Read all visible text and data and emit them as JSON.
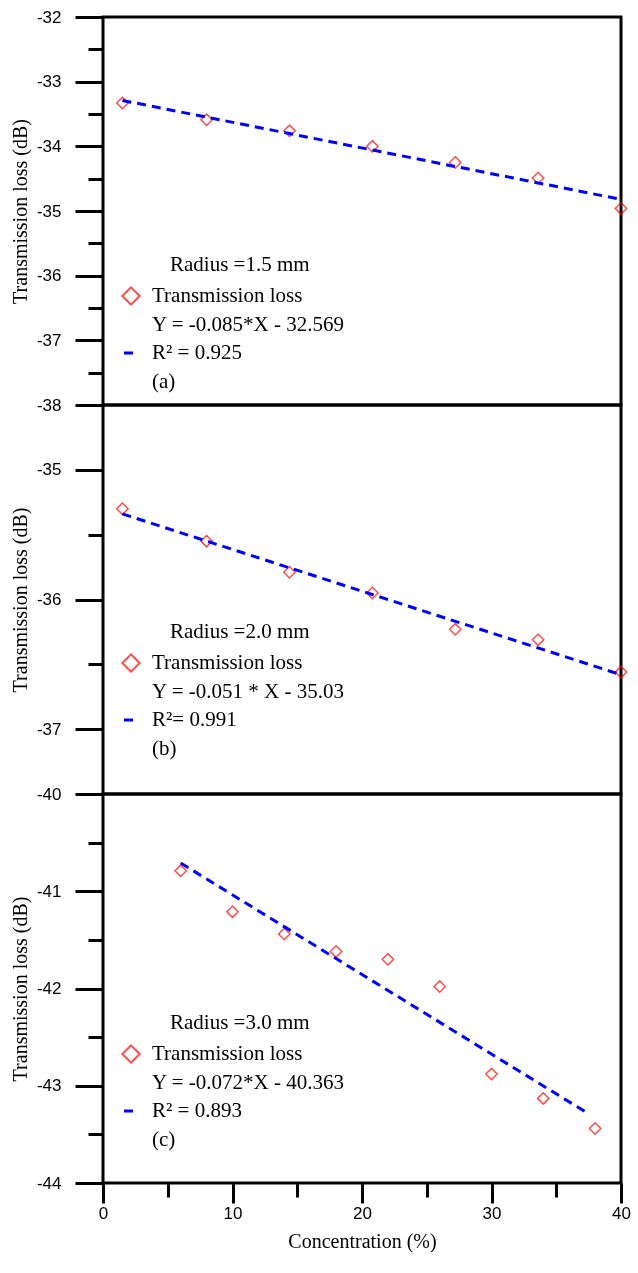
{
  "chart_data": [
    {
      "type": "scatter",
      "ylabel": "Transmission loss (dB)",
      "legend_title": "Radius =1.5 mm",
      "legend": "bottom left",
      "line_style": "dashed",
      "tick_labels": "y",
      "annotations": [
        "Y = -0.085*X - 32.569",
        "(a)"
      ],
      "xlim": [
        0,
        40
      ],
      "ylim": [
        -38,
        -32
      ],
      "yticks": [
        -32,
        {
          "value": -32.5,
          "label": null
        },
        -33,
        {
          "value": -33.5,
          "label": null
        },
        -34,
        {
          "value": -34.5,
          "label": null
        },
        -35,
        {
          "value": -35.5,
          "label": null
        },
        -36,
        {
          "value": -36.5,
          "label": null
        },
        -37,
        {
          "value": -37.5,
          "label": null
        },
        -38
      ],
      "series": [
        {
          "name": "Transmission loss",
          "color": "#ff0000",
          "marker": "diamond",
          "x": [
            1.5,
            8,
            14.4,
            20.8,
            27.2,
            33.6,
            40
          ],
          "values": [
            -33.33,
            -33.59,
            -33.76,
            -34.0,
            -34.25,
            -34.49,
            -34.96
          ]
        },
        {
          "type": "line",
          "name": "R² = 0.925",
          "color": "#0000ff",
          "marker": "none",
          "x": [
            1.5,
            40
          ],
          "values": [
            -33.29,
            -34.82
          ]
        }
      ]
    },
    {
      "type": "scatter",
      "ylabel": "Transmission loss (dB)",
      "legend_title": "Radius =2.0 mm",
      "legend": "bottom left",
      "line_style": "dashed",
      "tick_labels": "y",
      "annotations": [
        "Y = -0.051 * X - 35.03",
        "(b)"
      ],
      "xlim": [
        0,
        40
      ],
      "ylim": [
        -37.5,
        -34.5
      ],
      "yticks": [
        -35,
        {
          "value": -35.5,
          "label": null
        },
        -36,
        {
          "value": -36.5,
          "label": null
        },
        -37
      ],
      "series": [
        {
          "name": "Transmission loss",
          "color": "#ff0000",
          "marker": "diamond",
          "x": [
            1.5,
            8,
            14.4,
            20.8,
            27.2,
            33.6,
            40
          ],
          "values": [
            -35.3,
            -35.55,
            -35.79,
            -35.95,
            -36.23,
            -36.31,
            -36.56
          ]
        },
        {
          "type": "line",
          "name": "R²= 0.991",
          "color": "#0000ff",
          "marker": "none",
          "x": [
            1.5,
            40
          ],
          "values": [
            -35.34,
            -36.58
          ]
        }
      ]
    },
    {
      "type": "scatter",
      "ylabel": "Transmission loss (dB)",
      "xlabel": "Concentration (%)",
      "legend_title": "Radius =3.0 mm",
      "legend": "bottom left",
      "line_style": "dashed",
      "annotations": [
        "Y = -0.072*X - 40.363",
        "(c)"
      ],
      "xlim": [
        0,
        40
      ],
      "ylim": [
        -44,
        -40
      ],
      "xticks": [
        0,
        {
          "value": 5,
          "label": null
        },
        10,
        {
          "value": 15,
          "label": null
        },
        20,
        {
          "value": 25,
          "label": null
        },
        30,
        {
          "value": 35,
          "label": null
        },
        40
      ],
      "yticks": [
        -40,
        {
          "value": -40.5,
          "label": null
        },
        -41,
        {
          "value": -41.5,
          "label": null
        },
        -42,
        {
          "value": -42.5,
          "label": null
        },
        -43,
        {
          "value": -43.5,
          "label": null
        },
        -44
      ],
      "series": [
        {
          "name": "Transmission loss",
          "color": "#ff0000",
          "marker": "diamond",
          "x": [
            6,
            10,
            14,
            18,
            22,
            26,
            30,
            34,
            38
          ],
          "values": [
            -40.79,
            -41.21,
            -41.44,
            -41.62,
            -41.7,
            -41.98,
            -42.88,
            -43.13,
            -43.44
          ]
        },
        {
          "type": "line",
          "name": "R² = 0.893",
          "color": "#0000ff",
          "marker": "none",
          "x": [
            6,
            37.4
          ],
          "values": [
            -40.71,
            -43.28
          ]
        }
      ]
    }
  ]
}
